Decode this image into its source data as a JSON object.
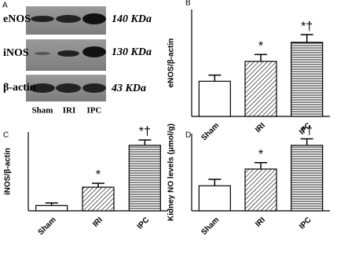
{
  "figure": {
    "panel_a": {
      "label": "A",
      "rows": [
        {
          "protein": "eNOS",
          "size": "140 KDa"
        },
        {
          "protein": "iNOS",
          "size": "130 KDa"
        },
        {
          "protein": "β-actin",
          "size": "43 KDa"
        }
      ],
      "lanes": [
        "Sham",
        "IRI",
        "IPC"
      ]
    }
  },
  "chart_data": [
    {
      "type": "bar",
      "panel_label": "B",
      "y_label": "eNOS/β-actin",
      "categories": [
        "Sham",
        "IRI",
        "IPC"
      ],
      "values": [
        0.46,
        0.72,
        0.97
      ],
      "errors": [
        0.08,
        0.09,
        0.1
      ],
      "value_annotations": [
        null,
        "*",
        "*†"
      ],
      "patterns": [
        "none",
        "diagonal",
        "horizontal"
      ],
      "color": "#000000",
      "ylim": [
        0,
        1.4
      ]
    },
    {
      "type": "bar",
      "panel_label": "C",
      "y_label": "iNOS/β-actin",
      "categories": [
        "Sham",
        "IRI",
        "IPC"
      ],
      "values": [
        0.08,
        0.36,
        1.0
      ],
      "errors": [
        0.04,
        0.06,
        0.08
      ],
      "value_annotations": [
        null,
        "*",
        "*†"
      ],
      "patterns": [
        "none",
        "diagonal",
        "horizontal"
      ],
      "color": "#000000",
      "ylim": [
        0,
        1.2
      ]
    },
    {
      "type": "bar",
      "panel_label": "D",
      "y_label": "Kidney NO levels (μmol/g)",
      "categories": [
        "Sham",
        "IRI",
        "IPC"
      ],
      "values": [
        0.39,
        0.65,
        1.02
      ],
      "errors": [
        0.1,
        0.1,
        0.1
      ],
      "value_annotations": [
        null,
        "*",
        "*†"
      ],
      "patterns": [
        "none",
        "diagonal",
        "horizontal"
      ],
      "color": "#000000",
      "ylim": [
        0,
        1.2
      ]
    }
  ]
}
